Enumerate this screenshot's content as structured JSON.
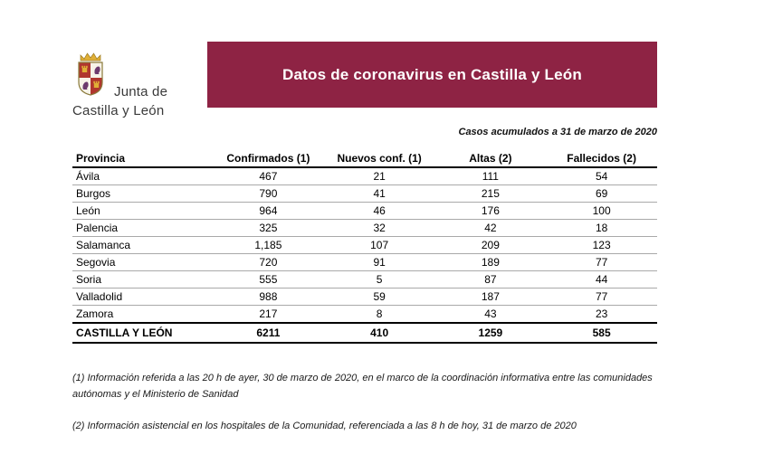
{
  "brand": {
    "logo": "junta-castilla-leon-coat-of-arms",
    "name_line1": "Junta de",
    "name_line2": "Castilla y León"
  },
  "header": {
    "title": "Datos de coronavirus en Castilla y León",
    "subtitle": "Casos acumulados a 31 de marzo de 2020",
    "banner_color": "#8e2344"
  },
  "table": {
    "headers": [
      "Provincia",
      "Confirmados (1)",
      "Nuevos conf. (1)",
      "Altas (2)",
      "Fallecidos (2)"
    ],
    "rows": [
      [
        "Ávila",
        "467",
        "21",
        "111",
        "54"
      ],
      [
        "Burgos",
        "790",
        "41",
        "215",
        "69"
      ],
      [
        "León",
        "964",
        "46",
        "176",
        "100"
      ],
      [
        "Palencia",
        "325",
        "32",
        "42",
        "18"
      ],
      [
        "Salamanca",
        "1,185",
        "107",
        "209",
        "123"
      ],
      [
        "Segovia",
        "720",
        "91",
        "189",
        "77"
      ],
      [
        "Soria",
        "555",
        "5",
        "87",
        "44"
      ],
      [
        "Valladolid",
        "988",
        "59",
        "187",
        "77"
      ],
      [
        "Zamora",
        "217",
        "8",
        "43",
        "23"
      ]
    ],
    "total": [
      "CASTILLA Y LEÓN",
      "6211",
      "410",
      "1259",
      "585"
    ]
  },
  "footnotes": [
    "(1) Información referida a las 20 h de ayer, 30 de marzo de 2020, en el marco de la coordinación informativa entre las comunidades autónomas y el Ministerio de Sanidad",
    "(2) Información asistencial en los hospitales de la Comunidad, referenciada a las 8 h de hoy, 31 de marzo de 2020"
  ]
}
